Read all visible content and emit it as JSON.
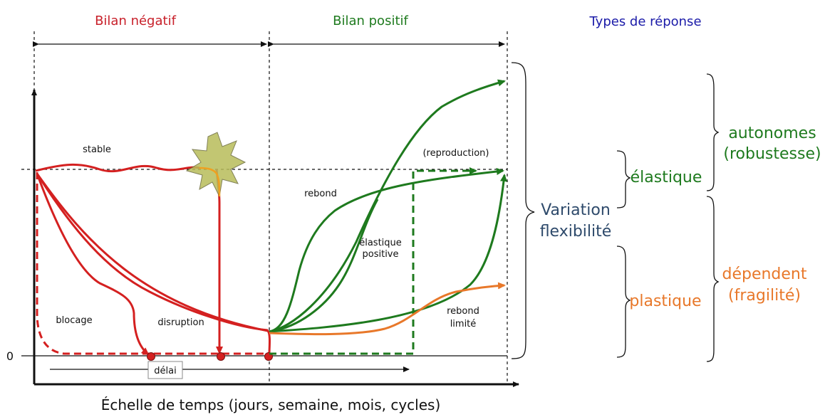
{
  "header": {
    "negative": "Bilan négatif",
    "positive": "Bilan positif",
    "response_types": "Types de réponse"
  },
  "axes": {
    "xlabel": "Échelle de temps (jours, semaine, mois, cycles)",
    "zero": "0"
  },
  "labels": {
    "stable": "stable",
    "blocage": "blocage",
    "disruption": "disruption",
    "delai": "délai",
    "rebond": "rebond",
    "elastique_positive_1": "élastique",
    "elastique_positive_2": "positive",
    "reproduction": "(reproduction)",
    "rebond_limite_1": "rebond",
    "rebond_limite_2": "limité"
  },
  "side": {
    "variation_1": "Variation",
    "variation_2": "flexibilité",
    "elastique": "élastique",
    "plastique": "plastique",
    "autonomes_1": "autonomes",
    "autonomes_2": "(robustesse)",
    "dependent_1": "dépendent",
    "dependent_2": "(fragilité)"
  },
  "colors": {
    "red": "#d42020",
    "green": "#1e7a1e",
    "orange": "#e8782a",
    "blue": "#1a1aa8",
    "navy": "#2e4a6b",
    "burst": "#b8bd5a"
  }
}
